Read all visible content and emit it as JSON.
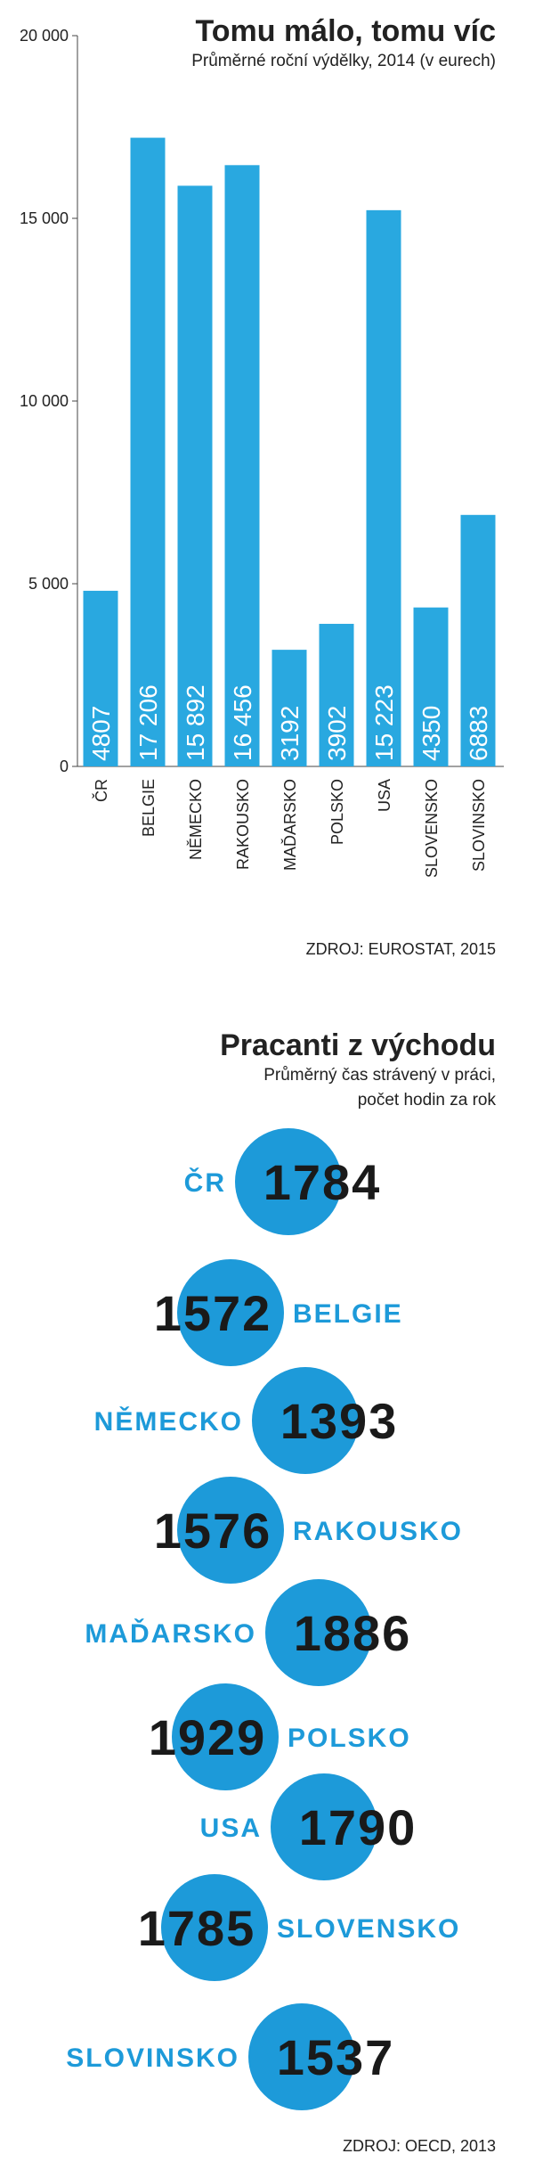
{
  "chart_data": [
    {
      "type": "bar",
      "title": "Tomu málo, tomu víc",
      "subtitle": "Průměrné roční výdělky, 2014 (v eurech)",
      "categories": [
        "ČR",
        "BELGIE",
        "NĚMECKO",
        "RAKOUSKO",
        "MAĎARSKO",
        "POLSKO",
        "USA",
        "SLOVENSKO",
        "SLOVINSKO"
      ],
      "values": [
        4807,
        17206,
        15892,
        16456,
        3192,
        3902,
        15223,
        4350,
        6883
      ],
      "value_labels": [
        "4807",
        "17 206",
        "15 892",
        "16 456",
        "3192",
        "3902",
        "15 223",
        "4350",
        "6883"
      ],
      "color": "#29a8e0",
      "ylim": [
        0,
        20000
      ],
      "yticks": [
        0,
        {
          "value": 5000,
          "label": "5 000"
        },
        {
          "value": 10000,
          "label": "10 000"
        },
        {
          "value": 15000,
          "label": "15 000"
        },
        {
          "value": 20000,
          "label": "20 000"
        }
      ],
      "source": "ZDROJ: EUROSTAT, 2015"
    },
    {
      "type": "circle-labels",
      "title": "Pracanti z východu",
      "subtitle": [
        "Průměrný čas strávený v práci,",
        "počet hodin za rok"
      ],
      "categories": [
        "ČR",
        "BELGIE",
        "NĚMECKO",
        "RAKOUSKO",
        "MAĎARSKO",
        "POLSKO",
        "USA",
        "SLOVENSKO",
        "SLOVINSKO"
      ],
      "values": [
        1784,
        1572,
        1393,
        1576,
        1886,
        1929,
        1790,
        1785,
        1537
      ],
      "color": "#1d9ad9",
      "source": "ZDROJ: OECD, 2013"
    }
  ]
}
